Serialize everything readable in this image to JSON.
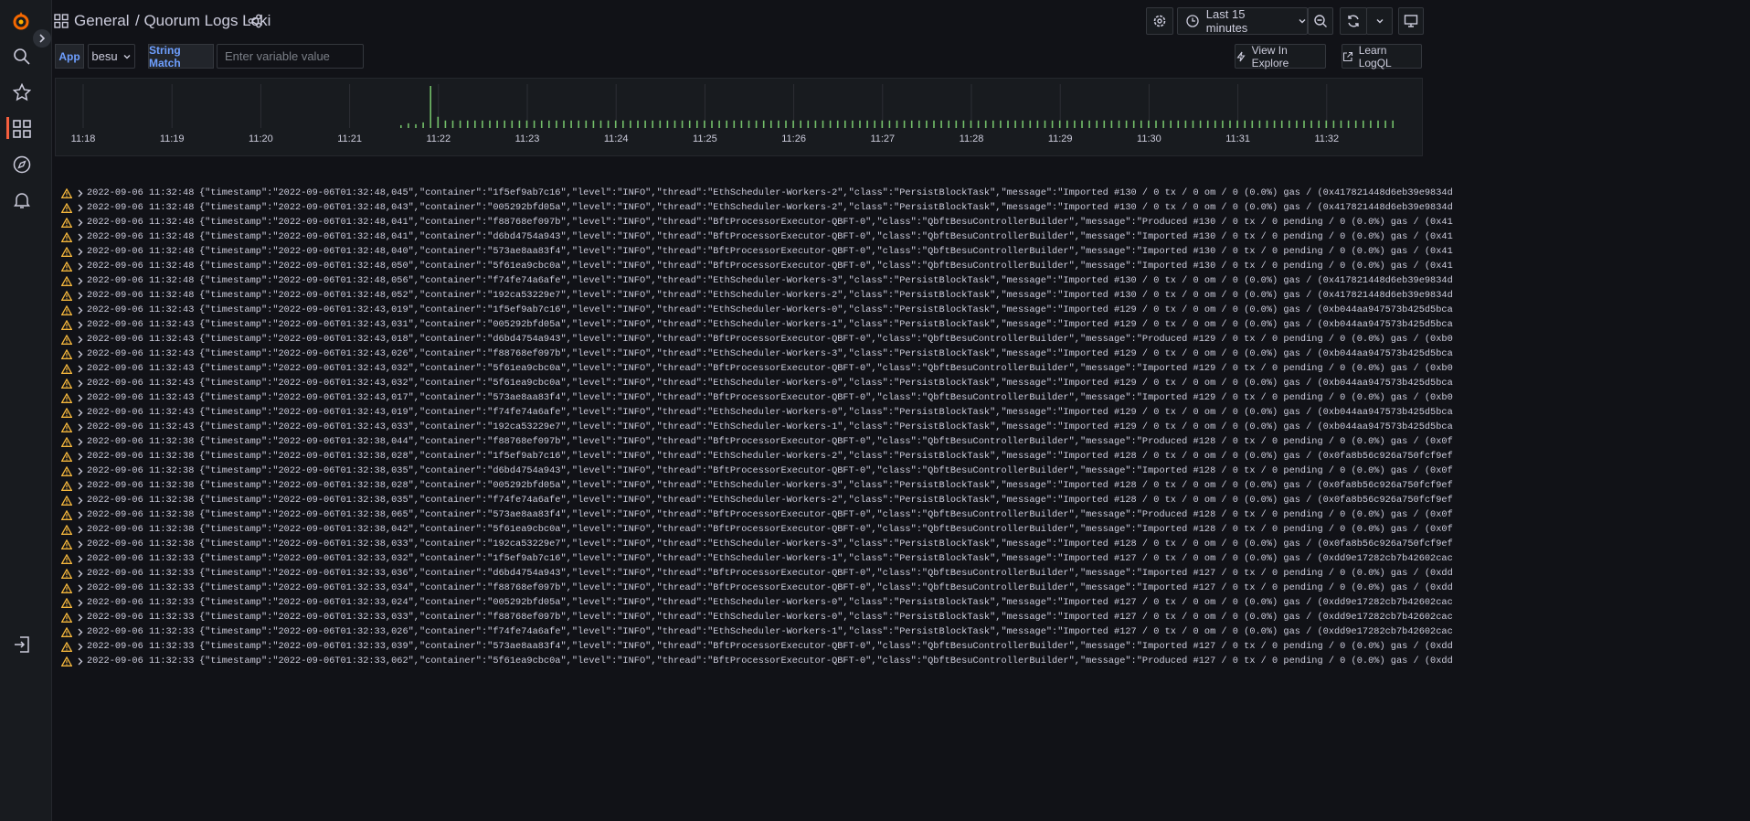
{
  "header": {
    "folder": "General",
    "title": "/ Quorum Logs Loki",
    "time_range": "Last 15 minutes"
  },
  "variables": [
    {
      "label": "App",
      "value": "besu"
    },
    {
      "label": "String Match",
      "placeholder": "Enter variable value"
    }
  ],
  "actions": [
    "View In Explore",
    "Learn LogQL"
  ],
  "log_volume": {
    "ticks": [
      "11:18",
      "11:19",
      "11:20",
      "11:21",
      "11:22",
      "11:23",
      "11:24",
      "11:25",
      "11:26",
      "11:27",
      "11:28",
      "11:29",
      "11:30",
      "11:31",
      "11:32"
    ],
    "counts": [
      3,
      5,
      4,
      6,
      45,
      12,
      8,
      8,
      8,
      8,
      8,
      8,
      8,
      8,
      8,
      8,
      8,
      8,
      8,
      8,
      8,
      8,
      8,
      8,
      8,
      8,
      8,
      8,
      8,
      8,
      8,
      8,
      8,
      8,
      8,
      8,
      8,
      8,
      8,
      8,
      8,
      8,
      8,
      8,
      8,
      8,
      8,
      8,
      8,
      8,
      8,
      8,
      8,
      8,
      8,
      8,
      8,
      8,
      8,
      8,
      8,
      8,
      8,
      8,
      8,
      8,
      8,
      8,
      8,
      8,
      8,
      8,
      8,
      8,
      8,
      8,
      8,
      8,
      8,
      8,
      8,
      8,
      8,
      8,
      8,
      8,
      8,
      8,
      8,
      8,
      8,
      8,
      8,
      8,
      8,
      8,
      8,
      8,
      8,
      8,
      8,
      8,
      8,
      8,
      8,
      8,
      8,
      8,
      8,
      8,
      8,
      8,
      8,
      8,
      8,
      8,
      8,
      8,
      8,
      8,
      8,
      8,
      8,
      8,
      8,
      8,
      8,
      8,
      8,
      8,
      8,
      8,
      8,
      8,
      8
    ]
  },
  "logs": {
    "rows": [
      {
        "time": "2022-09-06 11:32:48",
        "line": "{\"timestamp\":\"2022-09-06T01:32:48,045\",\"container\":\"1f5ef9ab7c16\",\"level\":\"INFO\",\"thread\":\"EthScheduler-Workers-2\",\"class\":\"PersistBlockTask\",\"message\":\"Imported #130 / 0 tx / 0 om / 0 (0.0%) gas / (0x417821448d6eb39e9834d"
      },
      {
        "time": "2022-09-06 11:32:48",
        "line": "{\"timestamp\":\"2022-09-06T01:32:48,043\",\"container\":\"005292bfd05a\",\"level\":\"INFO\",\"thread\":\"EthScheduler-Workers-2\",\"class\":\"PersistBlockTask\",\"message\":\"Imported #130 / 0 tx / 0 om / 0 (0.0%) gas / (0x417821448d6eb39e9834d"
      },
      {
        "time": "2022-09-06 11:32:48",
        "line": "{\"timestamp\":\"2022-09-06T01:32:48,041\",\"container\":\"f88768ef097b\",\"level\":\"INFO\",\"thread\":\"BftProcessorExecutor-QBFT-0\",\"class\":\"QbftBesuControllerBuilder\",\"message\":\"Produced #130 / 0 tx / 0 pending / 0 (0.0%) gas / (0x41"
      },
      {
        "time": "2022-09-06 11:32:48",
        "line": "{\"timestamp\":\"2022-09-06T01:32:48,041\",\"container\":\"d6bd4754a943\",\"level\":\"INFO\",\"thread\":\"BftProcessorExecutor-QBFT-0\",\"class\":\"QbftBesuControllerBuilder\",\"message\":\"Imported #130 / 0 tx / 0 pending / 0 (0.0%) gas / (0x41"
      },
      {
        "time": "2022-09-06 11:32:48",
        "line": "{\"timestamp\":\"2022-09-06T01:32:48,040\",\"container\":\"573ae8aa83f4\",\"level\":\"INFO\",\"thread\":\"BftProcessorExecutor-QBFT-0\",\"class\":\"QbftBesuControllerBuilder\",\"message\":\"Imported #130 / 0 tx / 0 pending / 0 (0.0%) gas / (0x41"
      },
      {
        "time": "2022-09-06 11:32:48",
        "line": "{\"timestamp\":\"2022-09-06T01:32:48,050\",\"container\":\"5f61ea9cbc0a\",\"level\":\"INFO\",\"thread\":\"BftProcessorExecutor-QBFT-0\",\"class\":\"QbftBesuControllerBuilder\",\"message\":\"Imported #130 / 0 tx / 0 pending / 0 (0.0%) gas / (0x41"
      },
      {
        "time": "2022-09-06 11:32:48",
        "line": "{\"timestamp\":\"2022-09-06T01:32:48,056\",\"container\":\"f74fe74a6afe\",\"level\":\"INFO\",\"thread\":\"EthScheduler-Workers-3\",\"class\":\"PersistBlockTask\",\"message\":\"Imported #130 / 0 tx / 0 om / 0 (0.0%) gas / (0x417821448d6eb39e9834d"
      },
      {
        "time": "2022-09-06 11:32:48",
        "line": "{\"timestamp\":\"2022-09-06T01:32:48,052\",\"container\":\"192ca53229e7\",\"level\":\"INFO\",\"thread\":\"EthScheduler-Workers-2\",\"class\":\"PersistBlockTask\",\"message\":\"Imported #130 / 0 tx / 0 om / 0 (0.0%) gas / (0x417821448d6eb39e9834d"
      },
      {
        "time": "2022-09-06 11:32:43",
        "line": "{\"timestamp\":\"2022-09-06T01:32:43,019\",\"container\":\"1f5ef9ab7c16\",\"level\":\"INFO\",\"thread\":\"EthScheduler-Workers-0\",\"class\":\"PersistBlockTask\",\"message\":\"Imported #129 / 0 tx / 0 om / 0 (0.0%) gas / (0xb044aa947573b425d5bca"
      },
      {
        "time": "2022-09-06 11:32:43",
        "line": "{\"timestamp\":\"2022-09-06T01:32:43,031\",\"container\":\"005292bfd05a\",\"level\":\"INFO\",\"thread\":\"EthScheduler-Workers-1\",\"class\":\"PersistBlockTask\",\"message\":\"Imported #129 / 0 tx / 0 om / 0 (0.0%) gas / (0xb044aa947573b425d5bca"
      },
      {
        "time": "2022-09-06 11:32:43",
        "line": "{\"timestamp\":\"2022-09-06T01:32:43,018\",\"container\":\"d6bd4754a943\",\"level\":\"INFO\",\"thread\":\"BftProcessorExecutor-QBFT-0\",\"class\":\"QbftBesuControllerBuilder\",\"message\":\"Produced #129 / 0 tx / 0 pending / 0 (0.0%) gas / (0xb0"
      },
      {
        "time": "2022-09-06 11:32:43",
        "line": "{\"timestamp\":\"2022-09-06T01:32:43,026\",\"container\":\"f88768ef097b\",\"level\":\"INFO\",\"thread\":\"EthScheduler-Workers-3\",\"class\":\"PersistBlockTask\",\"message\":\"Imported #129 / 0 tx / 0 om / 0 (0.0%) gas / (0xb044aa947573b425d5bca"
      },
      {
        "time": "2022-09-06 11:32:43",
        "line": "{\"timestamp\":\"2022-09-06T01:32:43,032\",\"container\":\"5f61ea9cbc0a\",\"level\":\"INFO\",\"thread\":\"BftProcessorExecutor-QBFT-0\",\"class\":\"QbftBesuControllerBuilder\",\"message\":\"Imported #129 / 0 tx / 0 pending / 0 (0.0%) gas / (0xb0"
      },
      {
        "time": "2022-09-06 11:32:43",
        "line": "{\"timestamp\":\"2022-09-06T01:32:43,032\",\"container\":\"5f61ea9cbc0a\",\"level\":\"INFO\",\"thread\":\"EthScheduler-Workers-0\",\"class\":\"PersistBlockTask\",\"message\":\"Imported #129 / 0 tx / 0 om / 0 (0.0%) gas / (0xb044aa947573b425d5bca"
      },
      {
        "time": "2022-09-06 11:32:43",
        "line": "{\"timestamp\":\"2022-09-06T01:32:43,017\",\"container\":\"573ae8aa83f4\",\"level\":\"INFO\",\"thread\":\"BftProcessorExecutor-QBFT-0\",\"class\":\"QbftBesuControllerBuilder\",\"message\":\"Imported #129 / 0 tx / 0 pending / 0 (0.0%) gas / (0xb0"
      },
      {
        "time": "2022-09-06 11:32:43",
        "line": "{\"timestamp\":\"2022-09-06T01:32:43,019\",\"container\":\"f74fe74a6afe\",\"level\":\"INFO\",\"thread\":\"EthScheduler-Workers-0\",\"class\":\"PersistBlockTask\",\"message\":\"Imported #129 / 0 tx / 0 om / 0 (0.0%) gas / (0xb044aa947573b425d5bca"
      },
      {
        "time": "2022-09-06 11:32:43",
        "line": "{\"timestamp\":\"2022-09-06T01:32:43,033\",\"container\":\"192ca53229e7\",\"level\":\"INFO\",\"thread\":\"EthScheduler-Workers-1\",\"class\":\"PersistBlockTask\",\"message\":\"Imported #129 / 0 tx / 0 om / 0 (0.0%) gas / (0xb044aa947573b425d5bca"
      },
      {
        "time": "2022-09-06 11:32:38",
        "line": "{\"timestamp\":\"2022-09-06T01:32:38,044\",\"container\":\"f88768ef097b\",\"level\":\"INFO\",\"thread\":\"BftProcessorExecutor-QBFT-0\",\"class\":\"QbftBesuControllerBuilder\",\"message\":\"Produced #128 / 0 tx / 0 pending / 0 (0.0%) gas / (0x0f"
      },
      {
        "time": "2022-09-06 11:32:38",
        "line": "{\"timestamp\":\"2022-09-06T01:32:38,028\",\"container\":\"1f5ef9ab7c16\",\"level\":\"INFO\",\"thread\":\"EthScheduler-Workers-2\",\"class\":\"PersistBlockTask\",\"message\":\"Imported #128 / 0 tx / 0 om / 0 (0.0%) gas / (0x0fa8b56c926a750fcf9ef"
      },
      {
        "time": "2022-09-06 11:32:38",
        "line": "{\"timestamp\":\"2022-09-06T01:32:38,035\",\"container\":\"d6bd4754a943\",\"level\":\"INFO\",\"thread\":\"BftProcessorExecutor-QBFT-0\",\"class\":\"QbftBesuControllerBuilder\",\"message\":\"Imported #128 / 0 tx / 0 pending / 0 (0.0%) gas / (0x0f"
      },
      {
        "time": "2022-09-06 11:32:38",
        "line": "{\"timestamp\":\"2022-09-06T01:32:38,028\",\"container\":\"005292bfd05a\",\"level\":\"INFO\",\"thread\":\"EthScheduler-Workers-3\",\"class\":\"PersistBlockTask\",\"message\":\"Imported #128 / 0 tx / 0 om / 0 (0.0%) gas / (0x0fa8b56c926a750fcf9ef"
      },
      {
        "time": "2022-09-06 11:32:38",
        "line": "{\"timestamp\":\"2022-09-06T01:32:38,035\",\"container\":\"f74fe74a6afe\",\"level\":\"INFO\",\"thread\":\"EthScheduler-Workers-2\",\"class\":\"PersistBlockTask\",\"message\":\"Imported #128 / 0 tx / 0 om / 0 (0.0%) gas / (0x0fa8b56c926a750fcf9ef"
      },
      {
        "time": "2022-09-06 11:32:38",
        "line": "{\"timestamp\":\"2022-09-06T01:32:38,065\",\"container\":\"573ae8aa83f4\",\"level\":\"INFO\",\"thread\":\"BftProcessorExecutor-QBFT-0\",\"class\":\"QbftBesuControllerBuilder\",\"message\":\"Produced #128 / 0 tx / 0 pending / 0 (0.0%) gas / (0x0f"
      },
      {
        "time": "2022-09-06 11:32:38",
        "line": "{\"timestamp\":\"2022-09-06T01:32:38,042\",\"container\":\"5f61ea9cbc0a\",\"level\":\"INFO\",\"thread\":\"BftProcessorExecutor-QBFT-0\",\"class\":\"QbftBesuControllerBuilder\",\"message\":\"Imported #128 / 0 tx / 0 pending / 0 (0.0%) gas / (0x0f"
      },
      {
        "time": "2022-09-06 11:32:38",
        "line": "{\"timestamp\":\"2022-09-06T01:32:38,033\",\"container\":\"192ca53229e7\",\"level\":\"INFO\",\"thread\":\"EthScheduler-Workers-3\",\"class\":\"PersistBlockTask\",\"message\":\"Imported #128 / 0 tx / 0 om / 0 (0.0%) gas / (0x0fa8b56c926a750fcf9ef"
      },
      {
        "time": "2022-09-06 11:32:33",
        "line": "{\"timestamp\":\"2022-09-06T01:32:33,032\",\"container\":\"1f5ef9ab7c16\",\"level\":\"INFO\",\"thread\":\"EthScheduler-Workers-1\",\"class\":\"PersistBlockTask\",\"message\":\"Imported #127 / 0 tx / 0 om / 0 (0.0%) gas / (0xdd9e17282cb7b42602cac"
      },
      {
        "time": "2022-09-06 11:32:33",
        "line": "{\"timestamp\":\"2022-09-06T01:32:33,036\",\"container\":\"d6bd4754a943\",\"level\":\"INFO\",\"thread\":\"BftProcessorExecutor-QBFT-0\",\"class\":\"QbftBesuControllerBuilder\",\"message\":\"Imported #127 / 0 tx / 0 pending / 0 (0.0%) gas / (0xdd"
      },
      {
        "time": "2022-09-06 11:32:33",
        "line": "{\"timestamp\":\"2022-09-06T01:32:33,034\",\"container\":\"f88768ef097b\",\"level\":\"INFO\",\"thread\":\"BftProcessorExecutor-QBFT-0\",\"class\":\"QbftBesuControllerBuilder\",\"message\":\"Imported #127 / 0 tx / 0 pending / 0 (0.0%) gas / (0xdd"
      },
      {
        "time": "2022-09-06 11:32:33",
        "line": "{\"timestamp\":\"2022-09-06T01:32:33,024\",\"container\":\"005292bfd05a\",\"level\":\"INFO\",\"thread\":\"EthScheduler-Workers-0\",\"class\":\"PersistBlockTask\",\"message\":\"Imported #127 / 0 tx / 0 om / 0 (0.0%) gas / (0xdd9e17282cb7b42602cac"
      },
      {
        "time": "2022-09-06 11:32:33",
        "line": "{\"timestamp\":\"2022-09-06T01:32:33,033\",\"container\":\"f88768ef097b\",\"level\":\"INFO\",\"thread\":\"EthScheduler-Workers-0\",\"class\":\"PersistBlockTask\",\"message\":\"Imported #127 / 0 tx / 0 om / 0 (0.0%) gas / (0xdd9e17282cb7b42602cac"
      },
      {
        "time": "2022-09-06 11:32:33",
        "line": "{\"timestamp\":\"2022-09-06T01:32:33,026\",\"container\":\"f74fe74a6afe\",\"level\":\"INFO\",\"thread\":\"EthScheduler-Workers-1\",\"class\":\"PersistBlockTask\",\"message\":\"Imported #127 / 0 tx / 0 om / 0 (0.0%) gas / (0xdd9e17282cb7b42602cac"
      },
      {
        "time": "2022-09-06 11:32:33",
        "line": "{\"timestamp\":\"2022-09-06T01:32:33,039\",\"container\":\"573ae8aa83f4\",\"level\":\"INFO\",\"thread\":\"BftProcessorExecutor-QBFT-0\",\"class\":\"QbftBesuControllerBuilder\",\"message\":\"Imported #127 / 0 tx / 0 pending / 0 (0.0%) gas / (0xdd"
      },
      {
        "time": "2022-09-06 11:32:33",
        "line": "{\"timestamp\":\"2022-09-06T01:32:33,062\",\"container\":\"5f61ea9cbc0a\",\"level\":\"INFO\",\"thread\":\"BftProcessorExecutor-QBFT-0\",\"class\":\"QbftBesuControllerBuilder\",\"message\":\"Produced #127 / 0 tx / 0 pending / 0 (0.0%) gas / (0xdd"
      }
    ]
  }
}
